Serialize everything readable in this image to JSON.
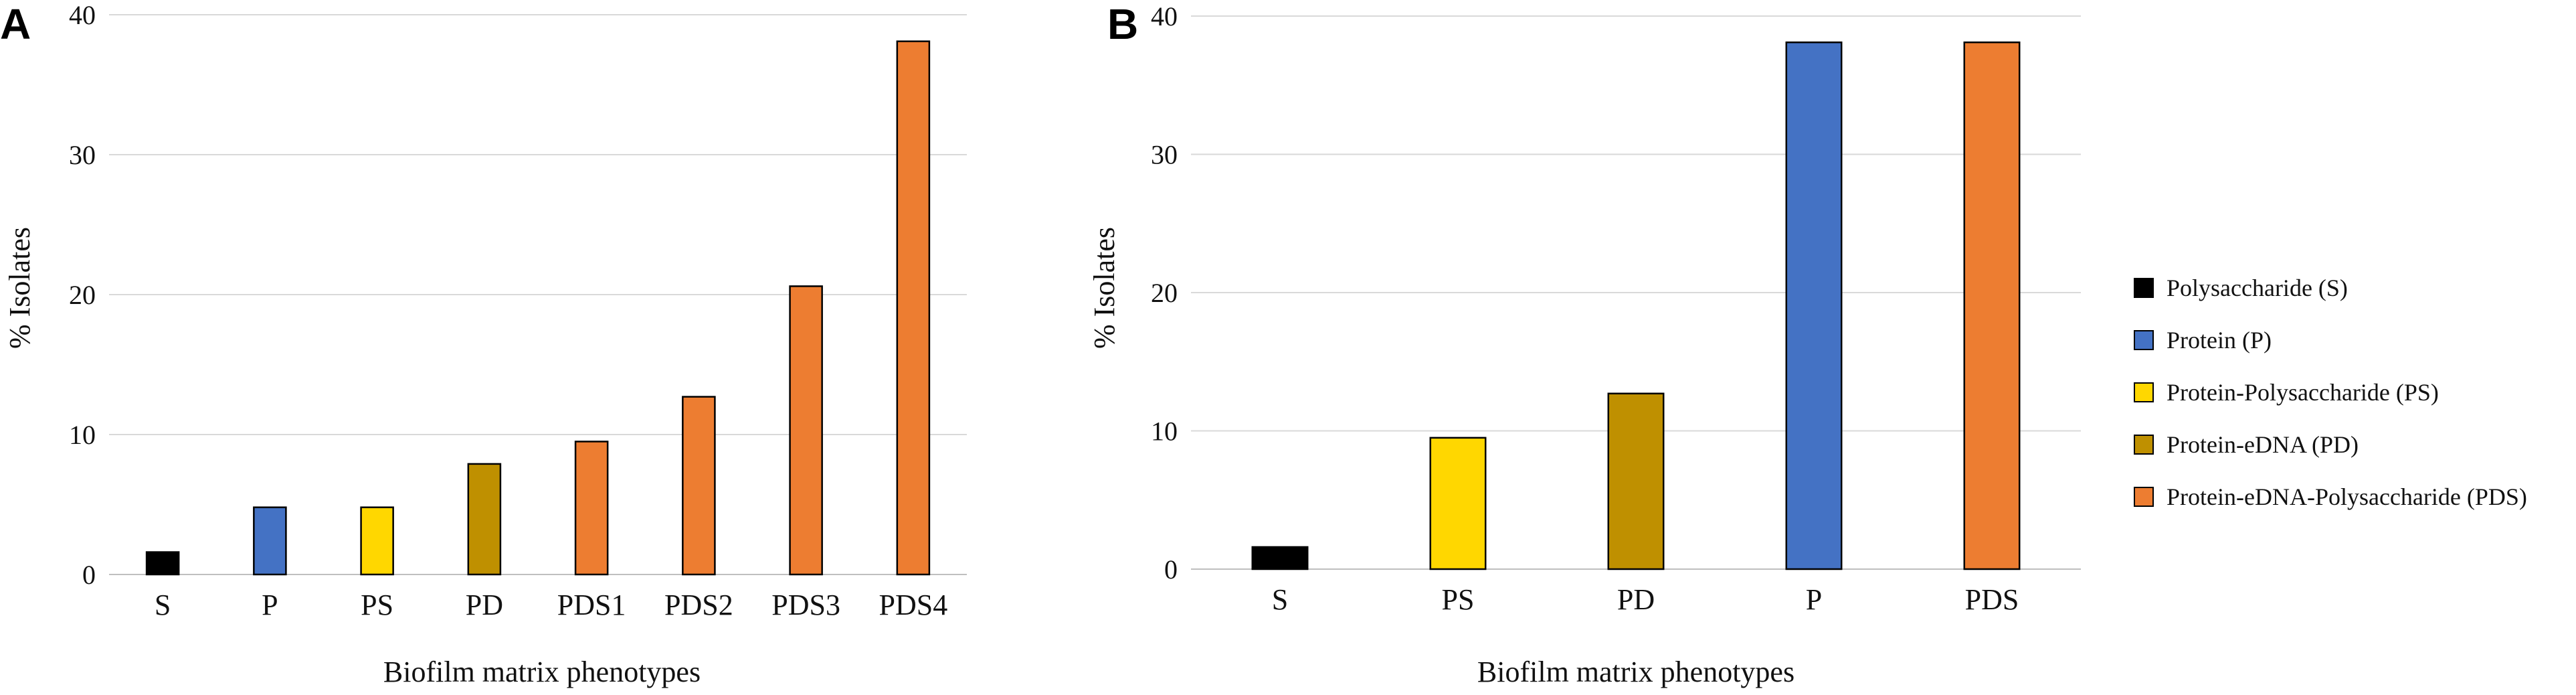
{
  "chart_data": [
    {
      "panel": "A",
      "type": "bar",
      "xlabel": "Biofilm matrix phenotypes",
      "ylabel": "% Isolates",
      "ylim": [
        0,
        40
      ],
      "yticks": [
        0,
        10,
        20,
        30,
        40
      ],
      "grid": true,
      "categories": [
        "S",
        "P",
        "PS",
        "PD",
        "PDS1",
        "PDS2",
        "PDS3",
        "PDS4"
      ],
      "values": [
        1.6,
        4.8,
        4.8,
        7.9,
        9.5,
        12.7,
        20.6,
        38.1
      ],
      "bar_colors": [
        "#000000",
        "#4472c4",
        "#ffd700",
        "#bf9000",
        "#ed7d31",
        "#ed7d31",
        "#ed7d31",
        "#ed7d31"
      ]
    },
    {
      "panel": "B",
      "type": "bar",
      "xlabel": "Biofilm matrix phenotypes",
      "ylabel": "% Isolates",
      "ylim": [
        0,
        40
      ],
      "yticks": [
        0,
        10,
        20,
        30,
        40
      ],
      "grid": true,
      "categories": [
        "S",
        "PS",
        "PD",
        "P",
        "PDS"
      ],
      "values": [
        1.6,
        9.5,
        12.7,
        38.1,
        38.1
      ],
      "bar_colors": [
        "#000000",
        "#ffd700",
        "#bf9000",
        "#4472c4",
        "#ed7d31"
      ],
      "legend_position": "right",
      "legend": [
        {
          "label": "Polysaccharide (S)",
          "color": "#000000"
        },
        {
          "label": "Protein (P)",
          "color": "#4472c4"
        },
        {
          "label": "Protein-Polysaccharide (PS)",
          "color": "#ffd700"
        },
        {
          "label": "Protein-eDNA (PD)",
          "color": "#bf9000"
        },
        {
          "label": "Protein-eDNA-Polysaccharide (PDS)",
          "color": "#ed7d31"
        }
      ]
    }
  ]
}
